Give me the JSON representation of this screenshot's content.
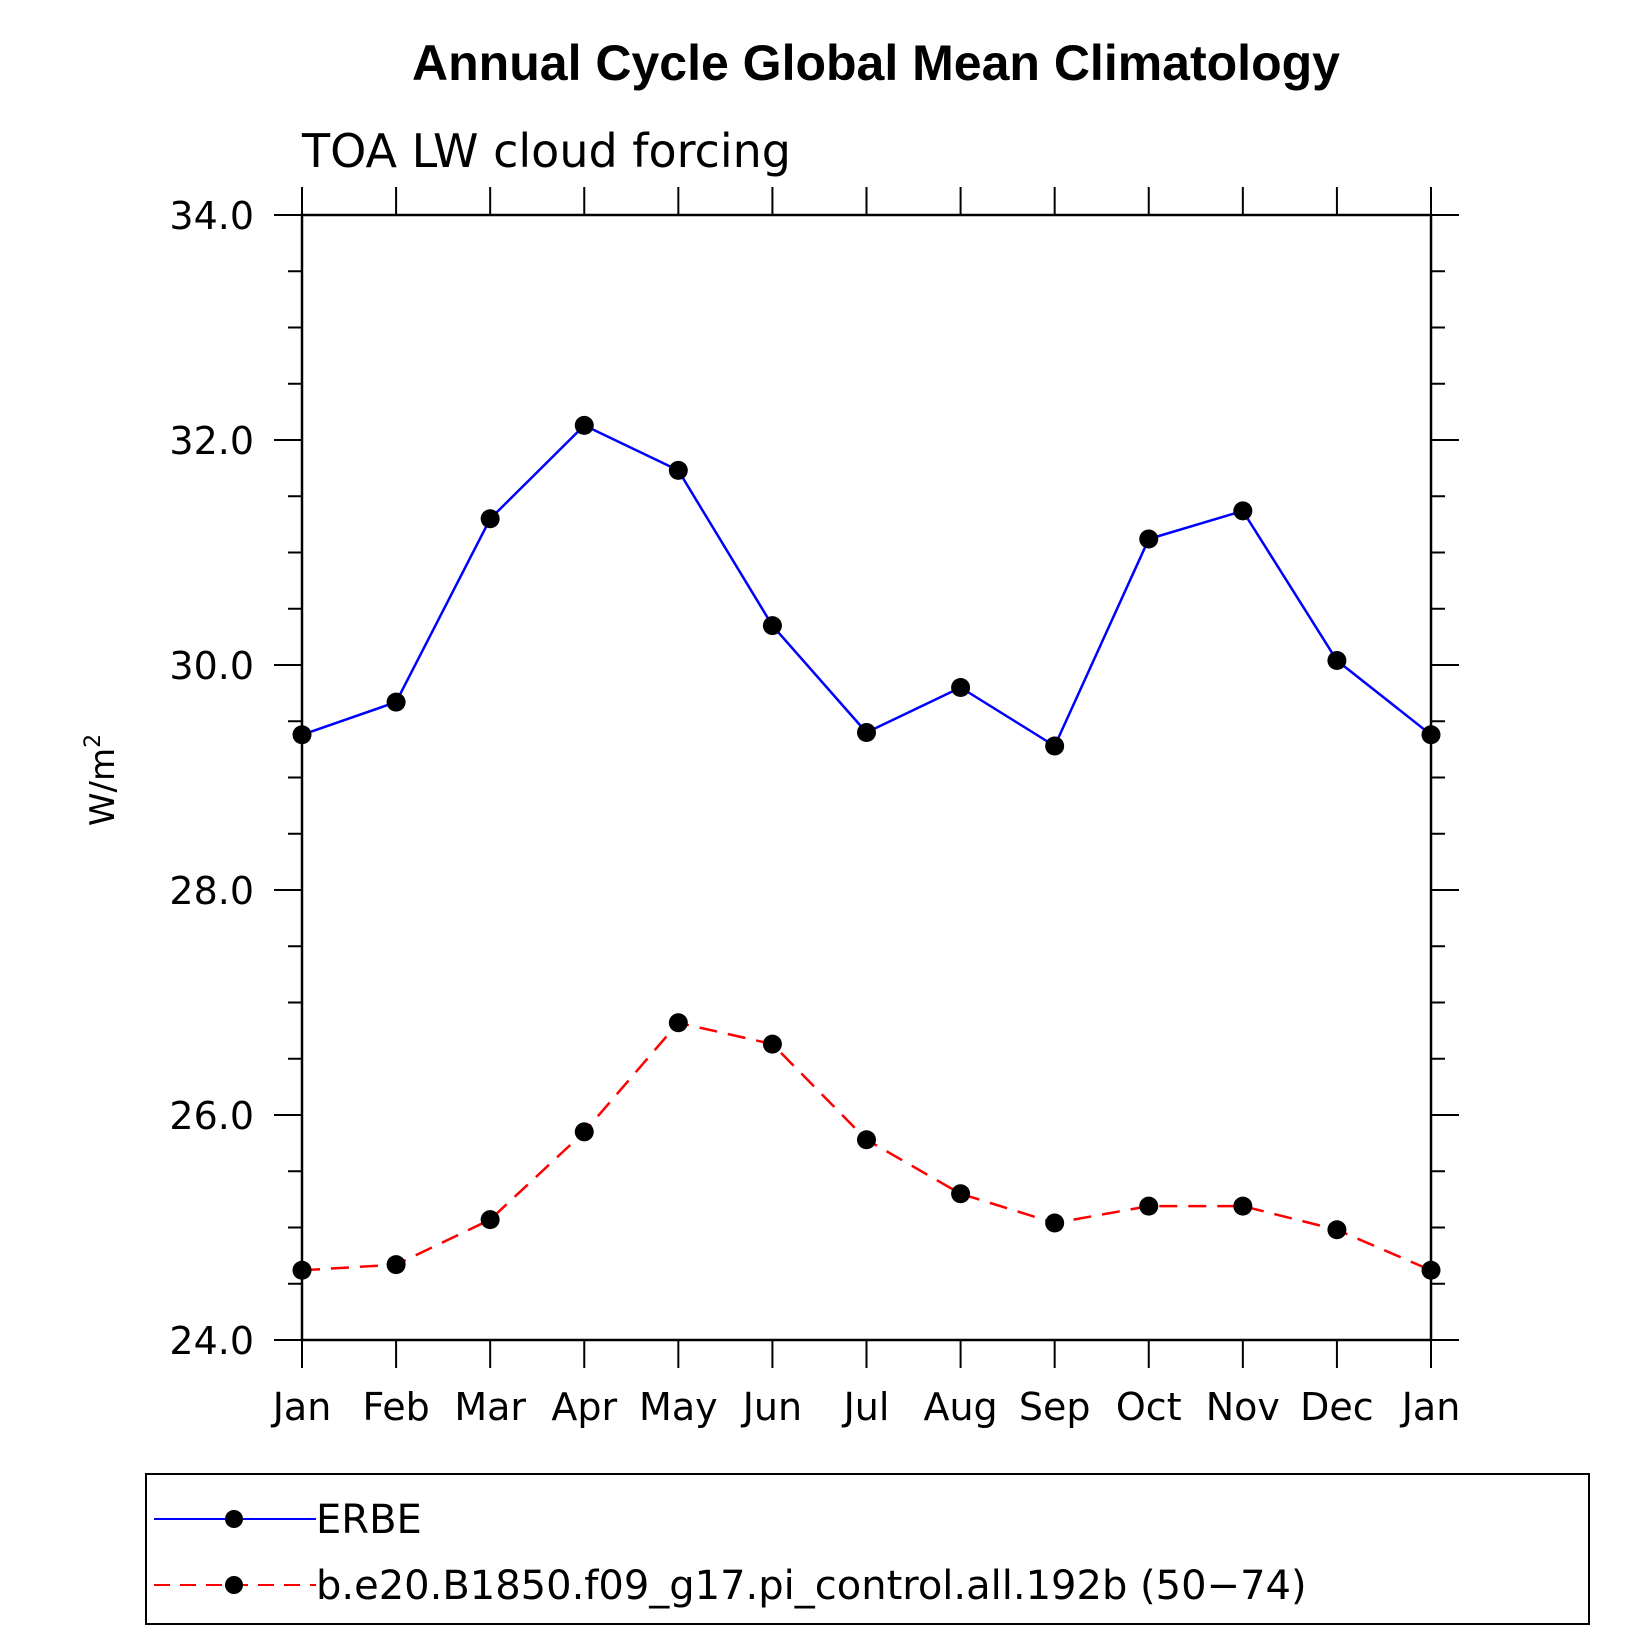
{
  "chart_data": {
    "type": "line",
    "title": "Annual Cycle Global Mean Climatology",
    "subtitle": "TOA LW cloud forcing",
    "ylabel_base": "W/m",
    "ylabel_sup": "2",
    "xlabel": "",
    "categories": [
      "Jan",
      "Feb",
      "Mar",
      "Apr",
      "May",
      "Jun",
      "Jul",
      "Aug",
      "Sep",
      "Oct",
      "Nov",
      "Dec",
      "Jan"
    ],
    "ylim": [
      24.0,
      34.0
    ],
    "y_ticks": [
      "24.0",
      "26.0",
      "28.0",
      "30.0",
      "32.0",
      "34.0"
    ],
    "grid": false,
    "legend_position": "bottom",
    "series": [
      {
        "name": "ERBE",
        "color": "#0000ff",
        "dash": "solid",
        "marker": "filled-circle",
        "values": [
          29.38,
          29.67,
          31.3,
          32.13,
          31.73,
          30.35,
          29.4,
          29.8,
          29.28,
          31.12,
          31.37,
          30.04,
          29.38
        ]
      },
      {
        "name": "b.e20.B1850.f09_g17.pi_control.all.192b (50−74)",
        "color": "#ff0000",
        "dash": "dashed",
        "marker": "filled-circle",
        "values": [
          24.62,
          24.67,
          25.07,
          25.85,
          26.82,
          26.63,
          25.78,
          25.3,
          25.04,
          25.19,
          25.19,
          24.98,
          24.62
        ]
      }
    ]
  }
}
